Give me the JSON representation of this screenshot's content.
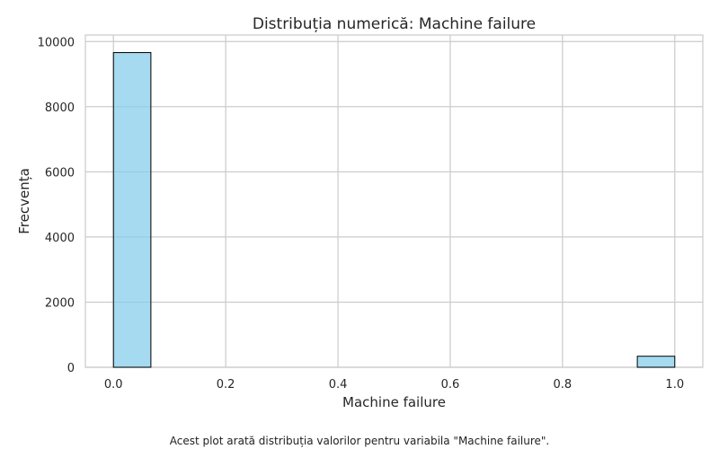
{
  "chart_data": {
    "type": "bar",
    "title": "Distribuția numerică: Machine failure",
    "xlabel": "Machine failure",
    "ylabel": "Frecvența",
    "xlim": [
      -0.05,
      1.05
    ],
    "ylim": [
      0,
      10200
    ],
    "xticks": [
      0.0,
      0.2,
      0.4,
      0.6,
      0.8,
      1.0
    ],
    "xtick_labels": [
      "0.0",
      "0.2",
      "0.4",
      "0.6",
      "0.8",
      "1.0"
    ],
    "yticks": [
      0,
      2000,
      4000,
      6000,
      8000,
      10000
    ],
    "ytick_labels": [
      "0",
      "2000",
      "4000",
      "6000",
      "8000",
      "10000"
    ],
    "grid": true,
    "bins": [
      {
        "x0": 0.0,
        "x1": 0.0667,
        "value": 9661
      },
      {
        "x0": 0.9333,
        "x1": 1.0,
        "value": 339
      }
    ],
    "bar_color": "#87ceeb",
    "edge_color": "#000000"
  },
  "caption": "Acest plot arată distribuția valorilor pentru variabila \"Machine failure\"."
}
